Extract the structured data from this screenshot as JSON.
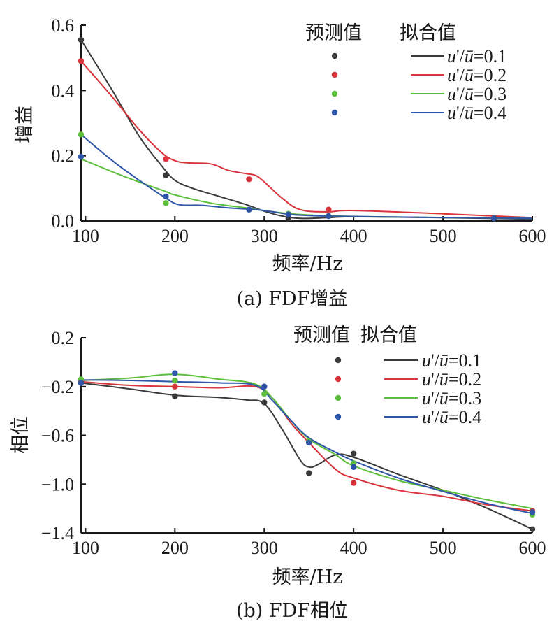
{
  "colors": {
    "u01": "#3a3a3a",
    "u02": "#d8343c",
    "u03": "#5cbf3c",
    "u04": "#2e55a8"
  },
  "chart_data": [
    {
      "type": "line",
      "caption": "(a) FDF增益",
      "xlabel": "频率/Hz",
      "ylabel": "增益",
      "xlim": [
        95,
        600
      ],
      "ylim": [
        0.0,
        0.6
      ],
      "xticks": [
        100,
        200,
        300,
        400,
        500,
        600
      ],
      "yticks": [
        0.0,
        0.2,
        0.4,
        0.6
      ],
      "xtick_labels": [
        "100",
        "200",
        "300",
        "400",
        "500",
        "600"
      ],
      "ytick_labels": [
        "0.0",
        "0.2",
        "0.4",
        "0.6"
      ],
      "legend": {
        "position": "top-right",
        "header_predicted": "预测值",
        "header_fitted": "拟合值"
      },
      "series": [
        {
          "name": "u'/ū=0.1",
          "name_parts": [
            "u",
            "'/",
            "ū",
            "=0.1"
          ],
          "color_key": "u01",
          "predicted": [
            [
              95,
              0.555
            ],
            [
              190,
              0.14
            ],
            [
              283,
              0.035
            ],
            [
              327,
              0.008
            ],
            [
              372,
              0.015
            ],
            [
              557,
              0.008
            ]
          ],
          "fitted": [
            [
              95,
              0.555
            ],
            [
              130,
              0.4
            ],
            [
              160,
              0.26
            ],
            [
              185,
              0.17
            ],
            [
              200,
              0.125
            ],
            [
              220,
              0.1
            ],
            [
              250,
              0.075
            ],
            [
              280,
              0.05
            ],
            [
              300,
              0.03
            ],
            [
              320,
              0.015
            ],
            [
              340,
              0.008
            ],
            [
              370,
              0.01
            ],
            [
              400,
              0.013
            ],
            [
              500,
              0.01
            ],
            [
              600,
              0.006
            ]
          ]
        },
        {
          "name": "u'/ū=0.2",
          "name_parts": [
            "u",
            "'/",
            "ū",
            "=0.2"
          ],
          "color_key": "u02",
          "predicted": [
            [
              95,
              0.49
            ],
            [
              190,
              0.19
            ],
            [
              283,
              0.128
            ],
            [
              372,
              0.035
            ],
            [
              557,
              0.008
            ]
          ],
          "fitted": [
            [
              95,
              0.49
            ],
            [
              130,
              0.38
            ],
            [
              160,
              0.28
            ],
            [
              185,
              0.21
            ],
            [
              200,
              0.185
            ],
            [
              215,
              0.178
            ],
            [
              240,
              0.175
            ],
            [
              260,
              0.155
            ],
            [
              280,
              0.145
            ],
            [
              290,
              0.14
            ],
            [
              300,
              0.12
            ],
            [
              320,
              0.07
            ],
            [
              340,
              0.035
            ],
            [
              370,
              0.028
            ],
            [
              400,
              0.032
            ],
            [
              500,
              0.022
            ],
            [
              600,
              0.01
            ]
          ]
        },
        {
          "name": "u'/ū=0.3",
          "name_parts": [
            "u",
            "'/",
            "ū",
            "=0.3"
          ],
          "color_key": "u03",
          "predicted": [
            [
              95,
              0.265
            ],
            [
              190,
              0.055
            ],
            [
              283,
              0.035
            ],
            [
              327,
              0.022
            ],
            [
              372,
              0.015
            ],
            [
              557,
              0.008
            ]
          ],
          "fitted": [
            [
              95,
              0.19
            ],
            [
              140,
              0.14
            ],
            [
              190,
              0.09
            ],
            [
              200,
              0.08
            ],
            [
              240,
              0.055
            ],
            [
              280,
              0.04
            ],
            [
              300,
              0.032
            ],
            [
              330,
              0.022
            ],
            [
              370,
              0.016
            ],
            [
              450,
              0.012
            ],
            [
              600,
              0.008
            ]
          ]
        },
        {
          "name": "u'/ū=0.4",
          "name_parts": [
            "u",
            "'/",
            "ū",
            "=0.4"
          ],
          "color_key": "u04",
          "predicted": [
            [
              95,
              0.197
            ],
            [
              190,
              0.075
            ],
            [
              283,
              0.035
            ],
            [
              327,
              0.02
            ],
            [
              372,
              0.015
            ],
            [
              557,
              0.008
            ]
          ],
          "fitted": [
            [
              95,
              0.265
            ],
            [
              130,
              0.185
            ],
            [
              160,
              0.125
            ],
            [
              190,
              0.07
            ],
            [
              205,
              0.05
            ],
            [
              230,
              0.048
            ],
            [
              260,
              0.04
            ],
            [
              290,
              0.035
            ],
            [
              310,
              0.028
            ],
            [
              330,
              0.02
            ],
            [
              370,
              0.015
            ],
            [
              450,
              0.012
            ],
            [
              600,
              0.008
            ]
          ]
        }
      ]
    },
    {
      "type": "line",
      "caption": "(b) FDF相位",
      "xlabel": "频率/Hz",
      "ylabel": "相位",
      "xlim": [
        95,
        600
      ],
      "ylim": [
        -1.4,
        0.2
      ],
      "xticks": [
        100,
        200,
        300,
        400,
        500,
        600
      ],
      "yticks": [
        -1.4,
        -1.0,
        -0.6,
        -0.2,
        0.2
      ],
      "xtick_labels": [
        "100",
        "200",
        "300",
        "400",
        "500",
        "600"
      ],
      "ytick_labels": [
        "−1.4",
        "−1.0",
        "−0.6",
        "−0.2",
        "0.2"
      ],
      "legend": {
        "position": "top-right",
        "header_predicted": "预测值",
        "header_fitted": "拟合值"
      },
      "series": [
        {
          "name": "u'/ū=0.1",
          "name_parts": [
            "u",
            "'/",
            "ū",
            "=0.1"
          ],
          "color_key": "u01",
          "predicted": [
            [
              95,
              -0.17
            ],
            [
              200,
              -0.28
            ],
            [
              300,
              -0.33
            ],
            [
              350,
              -0.91
            ],
            [
              400,
              -0.75
            ],
            [
              600,
              -1.37
            ]
          ],
          "fitted": [
            [
              95,
              -0.17
            ],
            [
              150,
              -0.22
            ],
            [
              200,
              -0.27
            ],
            [
              250,
              -0.29
            ],
            [
              280,
              -0.31
            ],
            [
              300,
              -0.34
            ],
            [
              320,
              -0.55
            ],
            [
              340,
              -0.8
            ],
            [
              350,
              -0.86
            ],
            [
              360,
              -0.84
            ],
            [
              380,
              -0.76
            ],
            [
              400,
              -0.78
            ],
            [
              450,
              -0.92
            ],
            [
              500,
              -1.05
            ],
            [
              550,
              -1.2
            ],
            [
              600,
              -1.37
            ]
          ]
        },
        {
          "name": "u'/ū=0.2",
          "name_parts": [
            "u",
            "'/",
            "ū",
            "=0.2"
          ],
          "color_key": "u02",
          "predicted": [
            [
              95,
              -0.15
            ],
            [
              200,
              -0.2
            ],
            [
              300,
              -0.2
            ],
            [
              350,
              -0.66
            ],
            [
              400,
              -0.99
            ],
            [
              600,
              -1.22
            ]
          ],
          "fitted": [
            [
              95,
              -0.16
            ],
            [
              150,
              -0.19
            ],
            [
              200,
              -0.2
            ],
            [
              250,
              -0.21
            ],
            [
              290,
              -0.2
            ],
            [
              310,
              -0.3
            ],
            [
              330,
              -0.5
            ],
            [
              350,
              -0.66
            ],
            [
              380,
              -0.88
            ],
            [
              400,
              -0.95
            ],
            [
              450,
              -1.05
            ],
            [
              500,
              -1.1
            ],
            [
              550,
              -1.17
            ],
            [
              600,
              -1.22
            ]
          ]
        },
        {
          "name": "u'/ū=0.3",
          "name_parts": [
            "u",
            "'/",
            "ū",
            "=0.3"
          ],
          "color_key": "u03",
          "predicted": [
            [
              95,
              -0.14
            ],
            [
              200,
              -0.15
            ],
            [
              300,
              -0.26
            ],
            [
              350,
              -0.65
            ],
            [
              400,
              -0.83
            ],
            [
              600,
              -1.25
            ]
          ],
          "fitted": [
            [
              95,
              -0.15
            ],
            [
              150,
              -0.13
            ],
            [
              200,
              -0.1
            ],
            [
              250,
              -0.14
            ],
            [
              290,
              -0.18
            ],
            [
              310,
              -0.3
            ],
            [
              330,
              -0.48
            ],
            [
              350,
              -0.63
            ],
            [
              380,
              -0.76
            ],
            [
              400,
              -0.85
            ],
            [
              450,
              -0.97
            ],
            [
              500,
              -1.05
            ],
            [
              550,
              -1.13
            ],
            [
              600,
              -1.2
            ]
          ]
        },
        {
          "name": "u'/ū=0.4",
          "name_parts": [
            "u",
            "'/",
            "ū",
            "=0.4"
          ],
          "color_key": "u04",
          "predicted": [
            [
              95,
              -0.17
            ],
            [
              200,
              -0.09
            ],
            [
              300,
              -0.2
            ],
            [
              350,
              -0.66
            ],
            [
              400,
              -0.86
            ],
            [
              600,
              -1.23
            ]
          ],
          "fitted": [
            [
              95,
              -0.145
            ],
            [
              150,
              -0.15
            ],
            [
              200,
              -0.16
            ],
            [
              250,
              -0.17
            ],
            [
              290,
              -0.19
            ],
            [
              310,
              -0.32
            ],
            [
              330,
              -0.48
            ],
            [
              350,
              -0.62
            ],
            [
              380,
              -0.74
            ],
            [
              400,
              -0.81
            ],
            [
              450,
              -0.95
            ],
            [
              500,
              -1.06
            ],
            [
              550,
              -1.16
            ],
            [
              600,
              -1.24
            ]
          ]
        }
      ]
    }
  ]
}
